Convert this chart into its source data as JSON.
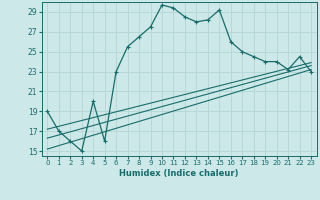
{
  "xlabel": "Humidex (Indice chaleur)",
  "ylabel": "",
  "bg_color": "#cde8e8",
  "grid_color": "#b8d8d8",
  "line_color": "#1a6b6b",
  "xlim": [
    -0.5,
    23.5
  ],
  "ylim": [
    14.5,
    30.0
  ],
  "yticks": [
    15,
    17,
    19,
    21,
    23,
    25,
    27,
    29
  ],
  "xticks": [
    0,
    1,
    2,
    3,
    4,
    5,
    6,
    7,
    8,
    9,
    10,
    11,
    12,
    13,
    14,
    15,
    16,
    17,
    18,
    19,
    20,
    21,
    22,
    23
  ],
  "main_x": [
    0,
    1,
    2,
    3,
    4,
    5,
    6,
    7,
    8,
    9,
    10,
    11,
    12,
    13,
    14,
    15,
    16,
    17,
    18,
    19,
    20,
    21,
    22,
    23
  ],
  "main_y": [
    19,
    17,
    16,
    15,
    20,
    16,
    23,
    25.5,
    26.5,
    27.5,
    29.7,
    29.4,
    28.5,
    28,
    28.2,
    29.2,
    26,
    25,
    24.5,
    24,
    24,
    23.2,
    24.5,
    23
  ],
  "line1_x": [
    0,
    23
  ],
  "line1_y": [
    15.2,
    23.2
  ],
  "line2_x": [
    0,
    23
  ],
  "line2_y": [
    16.3,
    23.6
  ],
  "line3_x": [
    0,
    23
  ],
  "line3_y": [
    17.2,
    23.9
  ]
}
